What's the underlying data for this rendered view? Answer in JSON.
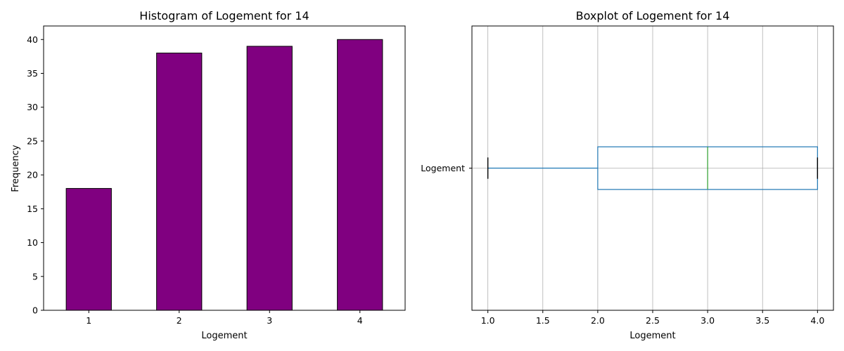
{
  "chart_data": [
    {
      "type": "bar",
      "title": "Histogram of Logement for 14",
      "xlabel": "Logement",
      "ylabel": "Frequency",
      "categories": [
        "1",
        "2",
        "3",
        "4"
      ],
      "values": [
        18,
        38,
        39,
        40
      ],
      "ylim": [
        0,
        42
      ],
      "yticks": [
        0,
        5,
        10,
        15,
        20,
        25,
        30,
        35,
        40
      ],
      "bar_color": "#800080",
      "edge_color": "#000000",
      "grid": false
    },
    {
      "type": "box",
      "title": "Boxplot of Logement for 14",
      "xlabel": "Logement",
      "category": "Logement",
      "orientation": "horizontal",
      "whisker_low": 1.0,
      "q1": 2.0,
      "median": 3.0,
      "q3": 4.0,
      "whisker_high": 4.0,
      "xlim": [
        0.855,
        4.145
      ],
      "xticks": [
        "1.0",
        "1.5",
        "2.0",
        "2.5",
        "3.0",
        "3.5",
        "4.0"
      ],
      "box_color": "#1f77b4",
      "median_color": "#2ca02c",
      "cap_color": "#000000",
      "grid": true
    }
  ]
}
